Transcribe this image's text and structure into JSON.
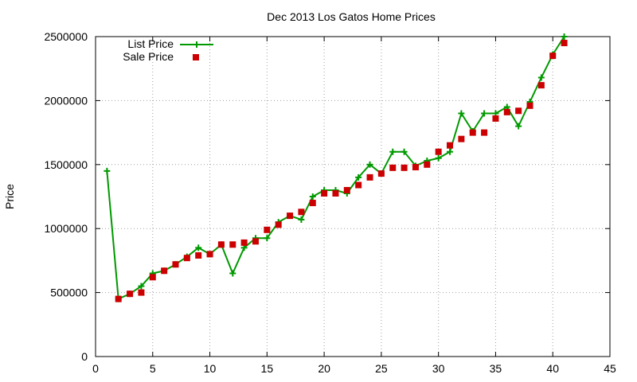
{
  "chart_data": {
    "type": "line",
    "title": "Dec 2013 Los Gatos Home Prices",
    "xlabel": "",
    "ylabel": "Price",
    "xlim": [
      0,
      45
    ],
    "ylim": [
      0,
      2500000
    ],
    "x_ticks": [
      0,
      5,
      10,
      15,
      20,
      25,
      30,
      35,
      40,
      45
    ],
    "x_tick_labels": [
      "0",
      "5",
      "10",
      "15",
      "20",
      "25",
      "30",
      "35",
      "40",
      "45"
    ],
    "y_ticks": [
      0,
      500000,
      1000000,
      1500000,
      2000000,
      2500000
    ],
    "y_tick_labels": [
      "0",
      "500000",
      "1000000",
      "1500000",
      "2000000",
      "2500000"
    ],
    "grid": true,
    "legend_position": "top-left",
    "series": [
      {
        "name": "List Price",
        "style": "line-plus",
        "color": "#009900",
        "x": [
          1,
          2,
          3,
          4,
          5,
          6,
          7,
          8,
          9,
          10,
          11,
          12,
          13,
          14,
          15,
          16,
          17,
          18,
          19,
          20,
          21,
          22,
          23,
          24,
          25,
          26,
          27,
          28,
          29,
          30,
          31,
          32,
          33,
          34,
          35,
          36,
          37,
          38,
          39,
          40,
          41
        ],
        "values": [
          1450000,
          450000,
          490000,
          550000,
          650000,
          670000,
          720000,
          780000,
          850000,
          800000,
          875000,
          650000,
          850000,
          925000,
          925000,
          1050000,
          1100000,
          1070000,
          1250000,
          1300000,
          1300000,
          1275000,
          1400000,
          1500000,
          1430000,
          1600000,
          1600000,
          1490000,
          1530000,
          1550000,
          1600000,
          1900000,
          1760000,
          1900000,
          1900000,
          1950000,
          1800000,
          1990000,
          2180000,
          2360000,
          2500000
        ]
      },
      {
        "name": "Sale Price",
        "style": "square",
        "color": "#cc0000",
        "x": [
          2,
          3,
          4,
          5,
          6,
          7,
          8,
          9,
          10,
          11,
          12,
          13,
          14,
          15,
          16,
          17,
          18,
          19,
          20,
          21,
          22,
          23,
          24,
          25,
          26,
          27,
          28,
          29,
          30,
          31,
          32,
          33,
          34,
          35,
          36,
          37,
          38,
          39,
          40,
          41
        ],
        "values": [
          450000,
          490000,
          500000,
          620000,
          670000,
          720000,
          770000,
          790000,
          800000,
          875000,
          875000,
          890000,
          900000,
          990000,
          1030000,
          1100000,
          1130000,
          1200000,
          1275000,
          1275000,
          1300000,
          1340000,
          1400000,
          1430000,
          1475000,
          1475000,
          1480000,
          1500000,
          1600000,
          1650000,
          1700000,
          1750000,
          1750000,
          1860000,
          1910000,
          1920000,
          1960000,
          2120000,
          2350000,
          2450000
        ]
      }
    ]
  }
}
